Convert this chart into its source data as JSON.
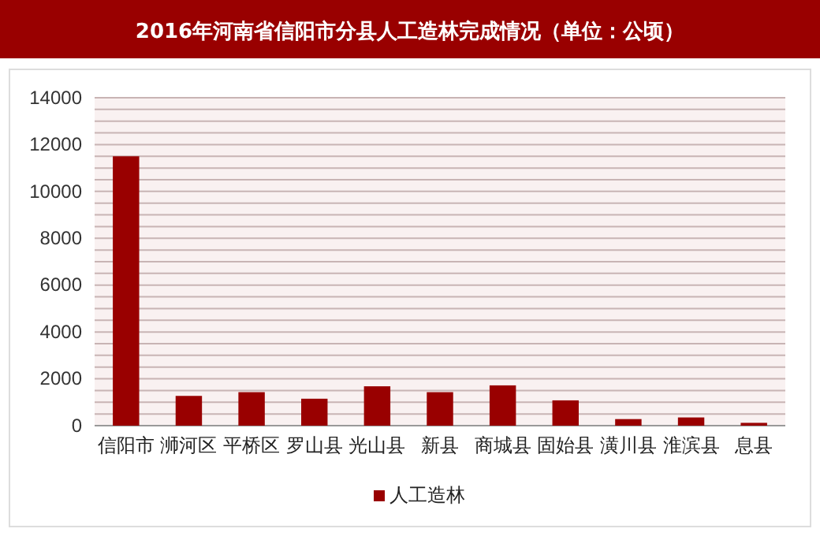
{
  "chart_data": {
    "type": "bar",
    "title": "2016年河南省信阳市分县人工造林完成情况（单位：公顷）",
    "categories": [
      "信阳市",
      "浉河区",
      "平桥区",
      "罗山县",
      "光山县",
      "新县",
      "商城县",
      "固始县",
      "潢川县",
      "淮滨县",
      "息县"
    ],
    "series": [
      {
        "name": "人工造林",
        "color": "#990000",
        "values": [
          11500,
          1270,
          1430,
          1150,
          1680,
          1430,
          1720,
          1080,
          280,
          350,
          120
        ]
      }
    ],
    "ylim": [
      0,
      14000
    ],
    "yticks": [
      0,
      {
        "value": 500,
        "label": null
      },
      {
        "value": 1000,
        "label": null
      },
      {
        "value": 1500,
        "label": null
      },
      2000,
      {
        "value": 2500,
        "label": null
      },
      {
        "value": 3000,
        "label": null
      },
      {
        "value": 3500,
        "label": null
      },
      4000,
      {
        "value": 4500,
        "label": null
      },
      {
        "value": 5000,
        "label": null
      },
      {
        "value": 5500,
        "label": null
      },
      6000,
      {
        "value": 6500,
        "label": null
      },
      {
        "value": 7000,
        "label": null
      },
      {
        "value": 7500,
        "label": null
      },
      8000,
      {
        "value": 8500,
        "label": null
      },
      {
        "value": 9000,
        "label": null
      },
      {
        "value": 9500,
        "label": null
      },
      10000,
      {
        "value": 10500,
        "label": null
      },
      {
        "value": 11000,
        "label": null
      },
      {
        "value": 11500,
        "label": null
      },
      12000,
      {
        "value": 12500,
        "label": null
      },
      {
        "value": 13000,
        "label": null
      },
      {
        "value": 13500,
        "label": null
      },
      14000
    ],
    "grid": "y",
    "legend": "bottom"
  }
}
